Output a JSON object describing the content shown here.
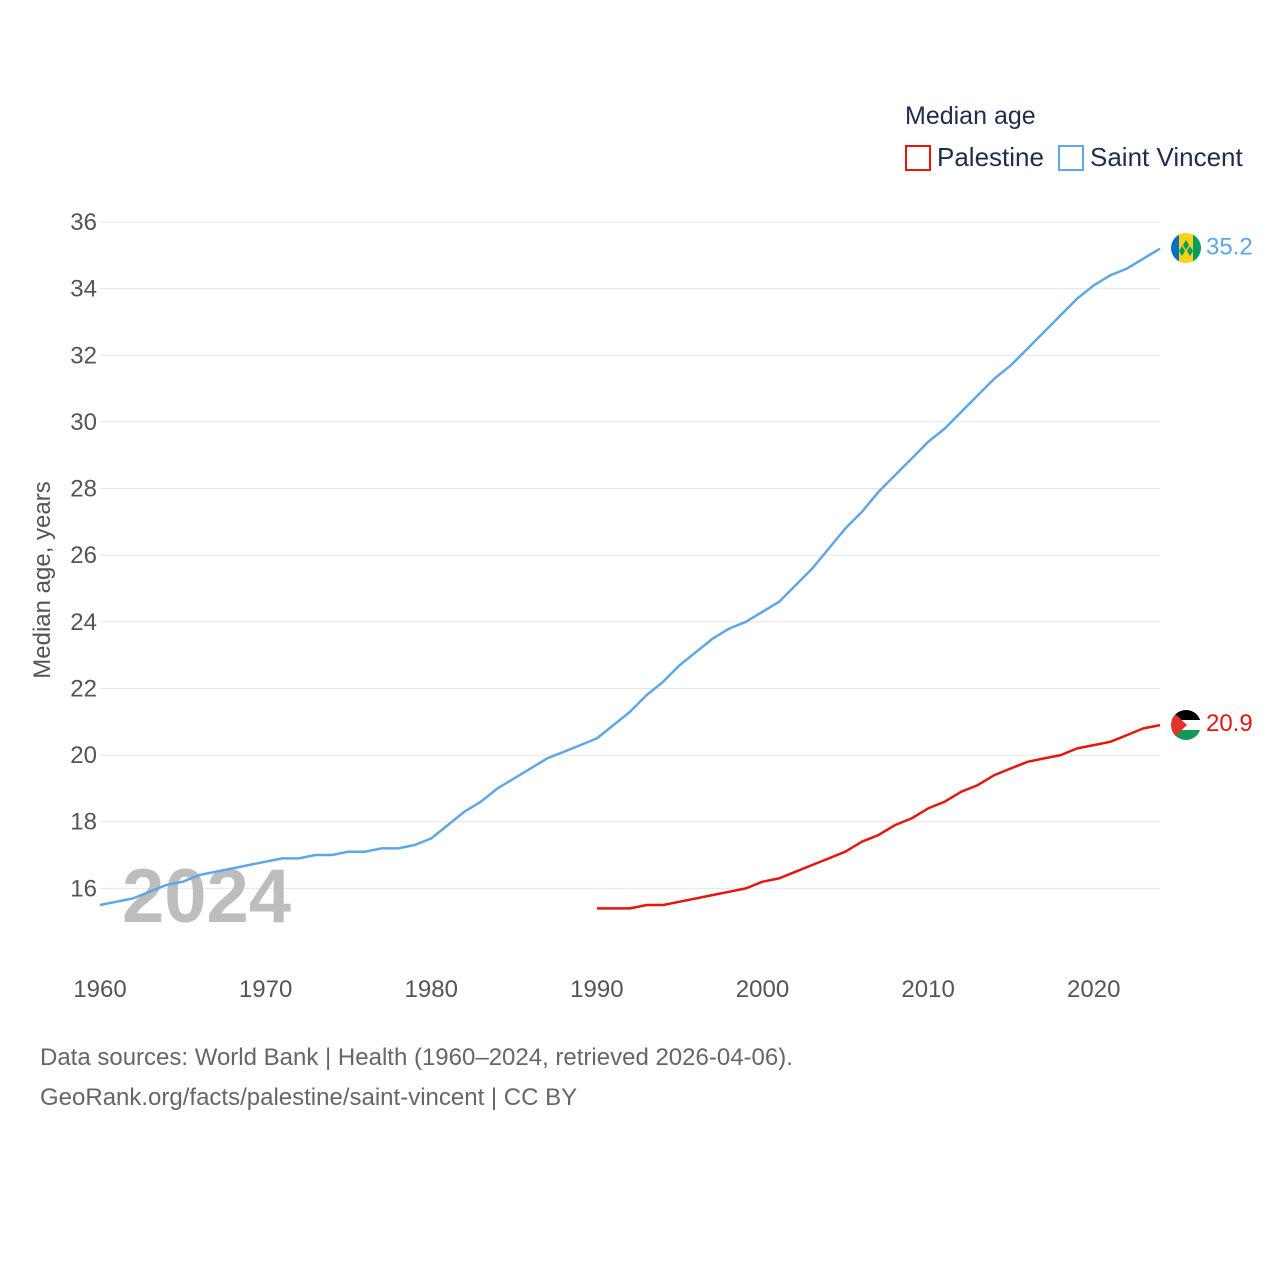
{
  "chart_data": {
    "type": "line",
    "title": "",
    "xlabel": "",
    "ylabel": "Median age, years",
    "xlim": [
      1960,
      2024
    ],
    "ylim": [
      14,
      36
    ],
    "x_ticks": [
      1960,
      1970,
      1980,
      1990,
      2000,
      2010,
      2020
    ],
    "y_ticks": [
      16,
      18,
      20,
      22,
      24,
      26,
      28,
      30,
      32,
      34,
      36
    ],
    "grid": true,
    "year_label": "2024",
    "legend": {
      "title": "Median age",
      "placement": "top-right",
      "items": [
        "Palestine",
        "Saint Vincent"
      ]
    },
    "series": [
      {
        "name": "Palestine",
        "color": "#e8150f",
        "end_label": "20.9",
        "flag_icon": "palestine-flag-icon",
        "x": [
          1990,
          1991,
          1992,
          1993,
          1994,
          1995,
          1996,
          1997,
          1998,
          1999,
          2000,
          2001,
          2002,
          2003,
          2004,
          2005,
          2006,
          2007,
          2008,
          2009,
          2010,
          2011,
          2012,
          2013,
          2014,
          2015,
          2016,
          2017,
          2018,
          2019,
          2020,
          2021,
          2022,
          2023,
          2024
        ],
        "values": [
          15.4,
          15.4,
          15.4,
          15.5,
          15.5,
          15.6,
          15.7,
          15.8,
          15.9,
          16.0,
          16.2,
          16.3,
          16.5,
          16.7,
          16.9,
          17.1,
          17.4,
          17.6,
          17.9,
          18.1,
          18.4,
          18.6,
          18.9,
          19.1,
          19.4,
          19.6,
          19.8,
          19.9,
          20.0,
          20.2,
          20.3,
          20.4,
          20.6,
          20.8,
          20.9
        ]
      },
      {
        "name": "Saint Vincent",
        "color": "#5ea7e6",
        "end_label": "35.2",
        "flag_icon": "saint-vincent-flag-icon",
        "x": [
          1960,
          1961,
          1962,
          1963,
          1964,
          1965,
          1966,
          1967,
          1968,
          1969,
          1970,
          1971,
          1972,
          1973,
          1974,
          1975,
          1976,
          1977,
          1978,
          1979,
          1980,
          1981,
          1982,
          1983,
          1984,
          1985,
          1986,
          1987,
          1988,
          1989,
          1990,
          1991,
          1992,
          1993,
          1994,
          1995,
          1996,
          1997,
          1998,
          1999,
          2000,
          2001,
          2002,
          2003,
          2004,
          2005,
          2006,
          2007,
          2008,
          2009,
          2010,
          2011,
          2012,
          2013,
          2014,
          2015,
          2016,
          2017,
          2018,
          2019,
          2020,
          2021,
          2022,
          2023,
          2024
        ],
        "values": [
          15.5,
          15.6,
          15.7,
          15.9,
          16.1,
          16.2,
          16.4,
          16.5,
          16.6,
          16.7,
          16.8,
          16.9,
          16.9,
          17.0,
          17.0,
          17.1,
          17.1,
          17.2,
          17.2,
          17.3,
          17.5,
          17.9,
          18.3,
          18.6,
          19.0,
          19.3,
          19.6,
          19.9,
          20.1,
          20.3,
          20.5,
          20.9,
          21.3,
          21.8,
          22.2,
          22.7,
          23.1,
          23.5,
          23.8,
          24.0,
          24.3,
          24.6,
          25.1,
          25.6,
          26.2,
          26.8,
          27.3,
          27.9,
          28.4,
          28.9,
          29.4,
          29.8,
          30.3,
          30.8,
          31.3,
          31.7,
          32.2,
          32.7,
          33.2,
          33.7,
          34.1,
          34.4,
          34.6,
          34.9,
          35.2
        ]
      }
    ]
  },
  "footer": {
    "line1": "Data sources: World Bank | Health (1960–2024, retrieved 2026-04-06).",
    "line2": "GeoRank.org/facts/palestine/saint-vincent | CC BY"
  }
}
